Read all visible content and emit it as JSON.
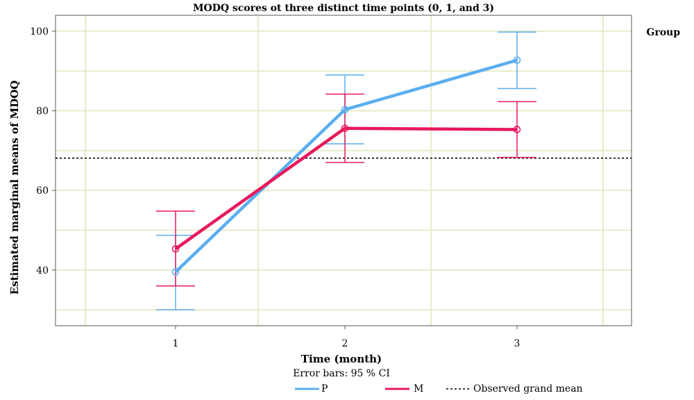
{
  "chart_data": {
    "type": "line",
    "title": "MODQ scores ot three distinct time points (0, 1, and 3)",
    "xlabel": "Time (month)",
    "ylabel": "Estimated marginal means of MDOQ",
    "categories": [
      "1",
      "2",
      "3"
    ],
    "y_ticks": [
      "40",
      "60",
      "80",
      "100"
    ],
    "ylim": [
      26,
      104
    ],
    "grid": true,
    "legend_title": "Group",
    "legend_placement": "bottom",
    "note": "Error bars: 95 % CI",
    "reference_line": {
      "name": "Observed grand mean",
      "value": 68.1,
      "style": "dotted",
      "color": "#000000"
    },
    "series": [
      {
        "name": "P",
        "color": "#5aaef0",
        "values": [
          39.5,
          80.3,
          92.7
        ],
        "ci_low": [
          30.0,
          71.7,
          85.6
        ],
        "ci_high": [
          48.7,
          89.0,
          99.8
        ]
      },
      {
        "name": "M",
        "color": "#e8195a",
        "values": [
          45.3,
          75.6,
          75.3
        ],
        "ci_low": [
          36.0,
          67.0,
          68.3
        ],
        "ci_high": [
          54.8,
          84.2,
          82.3
        ]
      }
    ]
  }
}
